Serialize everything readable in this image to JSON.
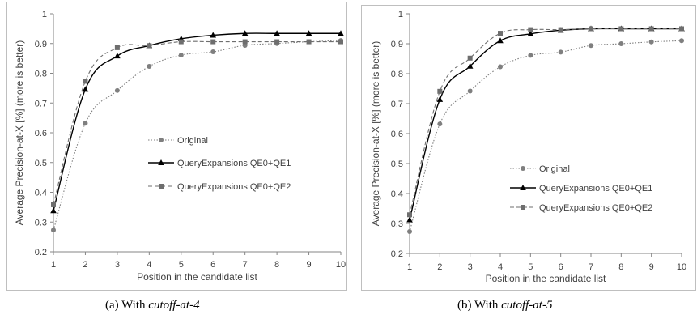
{
  "chart_data": [
    {
      "type": "line",
      "x": [
        1,
        2,
        3,
        4,
        5,
        6,
        7,
        8,
        9,
        10
      ],
      "xlabel": "Position in the candidate list",
      "ylabel": "Average Precision-at-X [%] (more is better)",
      "ylim": [
        0.2,
        1
      ],
      "yticks": [
        "0.2",
        "0.3",
        "0.4",
        "0.5",
        "0.6",
        "0.7",
        "0.8",
        "0.9",
        "1"
      ],
      "xticks": [
        "1",
        "2",
        "3",
        "4",
        "5",
        "6",
        "7",
        "8",
        "9",
        "10"
      ],
      "grid": false,
      "legend_position": "center-right",
      "series": [
        {
          "name": "Original",
          "marker": "circle",
          "line": "dotted",
          "color": "#7f7f7f",
          "values": [
            0.273,
            0.632,
            0.742,
            0.823,
            0.861,
            0.872,
            0.894,
            0.9,
            0.906,
            0.91
          ]
        },
        {
          "name": "QueryExpansions QE0+QE1",
          "marker": "triangle",
          "line": "solid",
          "color": "#000000",
          "values": [
            0.338,
            0.746,
            0.858,
            0.893,
            0.916,
            0.928,
            0.934,
            0.934,
            0.934,
            0.934
          ]
        },
        {
          "name": "QueryExpansions QE0+QE2",
          "marker": "square",
          "line": "dashed",
          "color": "#6e6e6e",
          "values": [
            0.358,
            0.773,
            0.886,
            0.893,
            0.906,
            0.906,
            0.906,
            0.906,
            0.906,
            0.906
          ]
        }
      ],
      "caption_label": "(a)  With",
      "caption_italic": "cutoff-at-4"
    },
    {
      "type": "line",
      "x": [
        1,
        2,
        3,
        4,
        5,
        6,
        7,
        8,
        9,
        10
      ],
      "xlabel": "Position in the candidate list",
      "ylabel": "Average Precision-at-X [%] (more is better)",
      "ylim": [
        0.2,
        1
      ],
      "yticks": [
        "0.2",
        "0.3",
        "0.4",
        "0.5",
        "0.6",
        "0.7",
        "0.8",
        "0.9",
        "1"
      ],
      "xticks": [
        "1",
        "2",
        "3",
        "4",
        "5",
        "6",
        "7",
        "8",
        "9",
        "10"
      ],
      "grid": false,
      "legend_position": "center-right",
      "series": [
        {
          "name": "Original",
          "marker": "circle",
          "line": "dotted",
          "color": "#7f7f7f",
          "values": [
            0.273,
            0.632,
            0.742,
            0.823,
            0.861,
            0.872,
            0.894,
            0.9,
            0.906,
            0.91
          ]
        },
        {
          "name": "QueryExpansions QE0+QE1",
          "marker": "triangle",
          "line": "solid",
          "color": "#000000",
          "values": [
            0.312,
            0.714,
            0.825,
            0.91,
            0.933,
            0.945,
            0.95,
            0.95,
            0.95,
            0.95
          ]
        },
        {
          "name": "QueryExpansions QE0+QE2",
          "marker": "square",
          "line": "dashed",
          "color": "#6e6e6e",
          "values": [
            0.329,
            0.741,
            0.852,
            0.935,
            0.947,
            0.947,
            0.95,
            0.95,
            0.95,
            0.95
          ]
        }
      ],
      "caption_label": "(b)  With",
      "caption_italic": "cutoff-at-5"
    }
  ]
}
